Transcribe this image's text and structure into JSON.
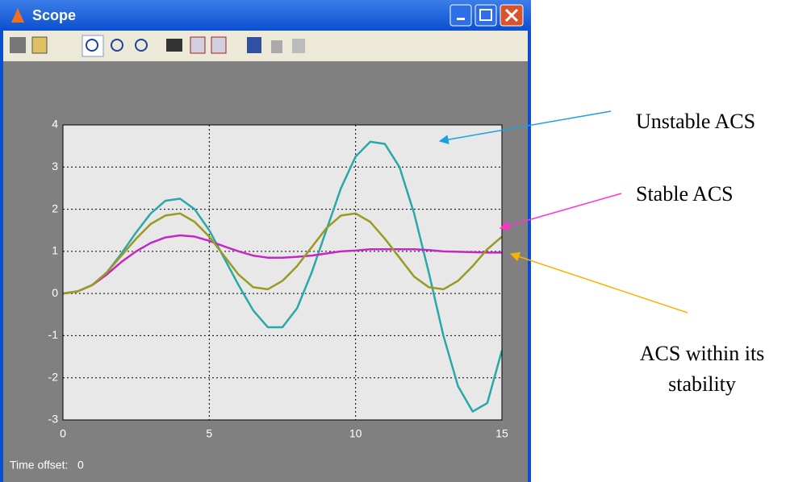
{
  "window": {
    "title": "Scope"
  },
  "chart_data": {
    "type": "line",
    "x": [
      0,
      0.5,
      1,
      1.5,
      2,
      2.5,
      3,
      3.5,
      4,
      4.5,
      5,
      5.5,
      6,
      6.5,
      7,
      7.5,
      8,
      8.5,
      9,
      9.5,
      10,
      10.5,
      11,
      11.5,
      12,
      12.5,
      13,
      13.5,
      14,
      14.5,
      15
    ],
    "series": [
      {
        "name": "Unstable ACS",
        "color": "#2aa8a8",
        "values": [
          0,
          0.05,
          0.2,
          0.5,
          0.95,
          1.45,
          1.9,
          2.2,
          2.25,
          2.0,
          1.5,
          0.85,
          0.2,
          -0.4,
          -0.8,
          -0.8,
          -0.35,
          0.5,
          1.5,
          2.5,
          3.25,
          3.6,
          3.55,
          3.0,
          1.9,
          0.5,
          -1.0,
          -2.2,
          -2.8,
          -2.6,
          -1.35
        ]
      },
      {
        "name": "Stable ACS",
        "color": "#c428c4",
        "values": [
          0,
          0.05,
          0.2,
          0.45,
          0.75,
          1.0,
          1.2,
          1.33,
          1.38,
          1.35,
          1.25,
          1.12,
          1.0,
          0.9,
          0.85,
          0.85,
          0.87,
          0.9,
          0.95,
          1.0,
          1.02,
          1.05,
          1.05,
          1.05,
          1.05,
          1.03,
          1.0,
          0.99,
          0.98,
          0.97,
          0.97
        ]
      },
      {
        "name": "ACS within its stability",
        "color": "#9a9a22",
        "values": [
          0,
          0.05,
          0.2,
          0.5,
          0.9,
          1.3,
          1.65,
          1.85,
          1.9,
          1.7,
          1.35,
          0.9,
          0.45,
          0.15,
          0.1,
          0.3,
          0.65,
          1.1,
          1.55,
          1.85,
          1.9,
          1.7,
          1.3,
          0.85,
          0.4,
          0.15,
          0.1,
          0.3,
          0.65,
          1.05,
          1.35
        ]
      }
    ],
    "xlim": [
      0,
      15
    ],
    "ylim": [
      -3,
      4
    ],
    "xticks": [
      0,
      5,
      10,
      15
    ],
    "yticks": [
      -3,
      -2,
      -1,
      0,
      1,
      2,
      3,
      4
    ],
    "grid": true
  },
  "status": {
    "label": "Time offset:",
    "value": 0
  }
}
